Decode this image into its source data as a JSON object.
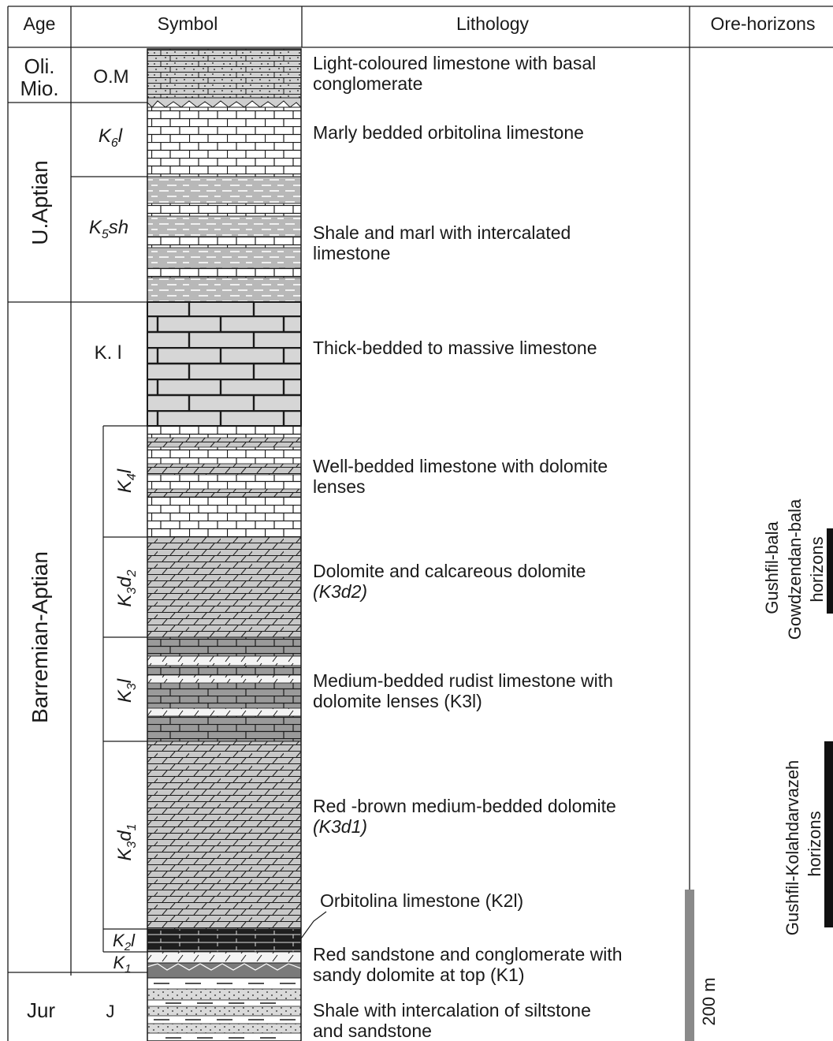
{
  "headers": {
    "age": "Age",
    "symbol": "Symbol",
    "lithology": "Lithology",
    "ore": "Ore-horizons"
  },
  "ages": {
    "olimio_1": "Oli.",
    "olimio_2": "Mio.",
    "uaptian": "U.Aptian",
    "barremian": "Barremian-Aptian",
    "jur": "Jur"
  },
  "units": [
    {
      "id": "om",
      "label": "O.M",
      "sub": "",
      "tail": ""
    },
    {
      "id": "k6l",
      "label": "K",
      "sub": "6",
      "tail": "l"
    },
    {
      "id": "k5sh",
      "label": "K",
      "sub": "5",
      "tail": "sh"
    },
    {
      "id": "kl",
      "label": "K. l",
      "sub": "",
      "tail": ""
    },
    {
      "id": "k4l",
      "label": "K",
      "sub": "4",
      "tail": "l"
    },
    {
      "id": "k3d2",
      "label": "K",
      "sub": "3",
      "tail": "d",
      "sub2": "2"
    },
    {
      "id": "k3l",
      "label": "K",
      "sub": "3",
      "tail": "l"
    },
    {
      "id": "k3d1",
      "label": "K",
      "sub": "3",
      "tail": "d",
      "sub2": "1"
    },
    {
      "id": "k2l",
      "label": "K",
      "sub": "2",
      "tail": "l"
    },
    {
      "id": "k1",
      "label": "K",
      "sub": "1",
      "tail": ""
    },
    {
      "id": "j",
      "label": "J",
      "sub": "",
      "tail": ""
    }
  ],
  "lithology": {
    "om": [
      "Light-coloured limestone with basal",
      "conglomerate"
    ],
    "k6l": [
      "Marly bedded orbitolina limestone"
    ],
    "k5sh": [
      "Shale and marl with intercalated",
      "limestone"
    ],
    "kl": [
      "Thick-bedded to massive limestone"
    ],
    "k4l": [
      "Well-bedded limestone with dolomite",
      "lenses"
    ],
    "k3d2": [
      "Dolomite and calcareous dolomite",
      "(K3d2)"
    ],
    "k3l": [
      "Medium-bedded rudist limestone with",
      "dolomite lenses  (K3l)"
    ],
    "k3d1": [
      "Red -brown medium-bedded dolomite",
      "(K3d1)"
    ],
    "k2l": [
      "Orbitolina limestone (K2l)"
    ],
    "k1": [
      "Red sandstone and conglomerate with",
      "sandy dolomite at top (K1)"
    ],
    "j": [
      "Shale with intercalation of siltstone",
      "and sandstone"
    ]
  },
  "ore_horizons": [
    {
      "line1": "Gushfil-bala",
      "line2": "Gowdzendan-bala",
      "line3": "horizons"
    },
    {
      "line1": "Gushfil-Kolahdarvazeh",
      "line2": "horizons",
      "line3": ""
    }
  ],
  "scale": {
    "label": "200 m",
    "value_m": 200
  },
  "colors": {
    "line": "#1a1a1a",
    "light_fill": "#ffffff",
    "grey_fill": "#d6d6d6",
    "mid_grey": "#a8a8a8",
    "dark_grey": "#8c8c8c",
    "black_bar": "#111111",
    "scale_bar": "#8a8a8a"
  }
}
